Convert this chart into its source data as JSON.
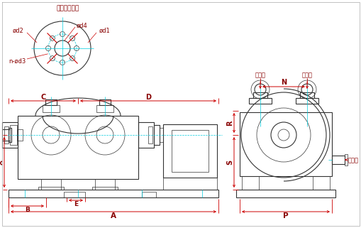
{
  "bg_color": "#ffffff",
  "line_color": "#333333",
  "dim_color": "#cc0000",
  "cyan_color": "#00ccdd",
  "label_color": "#880000",
  "flange_title": "进排气口尺寸",
  "label_d4": "ød4",
  "label_d2": "ød2",
  "label_d1": "ød1",
  "label_d3": "n-ød3",
  "label_C": "C",
  "label_D": "D",
  "label_A": "A",
  "label_X": "X",
  "label_B": "B",
  "label_E": "E",
  "label_N": "N",
  "label_R": "R",
  "label_S": "S",
  "label_P": "P",
  "inlet_label": "进气口",
  "outlet_label": "排气口",
  "water_label": "供水口"
}
